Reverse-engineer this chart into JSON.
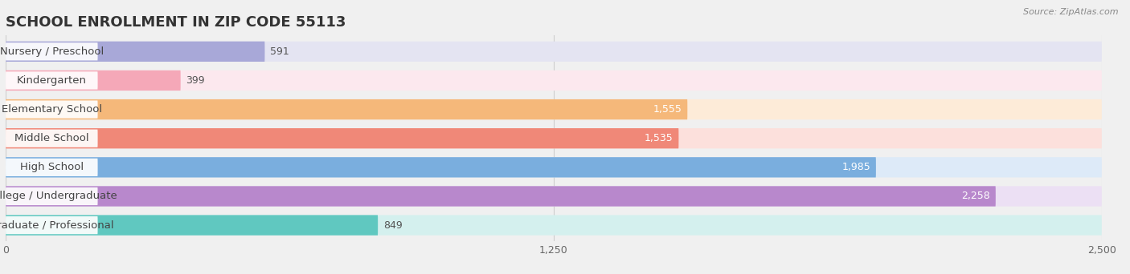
{
  "title": "SCHOOL ENROLLMENT IN ZIP CODE 55113",
  "source": "Source: ZipAtlas.com",
  "categories": [
    "Nursery / Preschool",
    "Kindergarten",
    "Elementary School",
    "Middle School",
    "High School",
    "College / Undergraduate",
    "Graduate / Professional"
  ],
  "values": [
    591,
    399,
    1555,
    1535,
    1985,
    2258,
    849
  ],
  "bar_colors": [
    "#a8a8d8",
    "#f5a8b8",
    "#f5b87a",
    "#f08878",
    "#7aaede",
    "#b888cc",
    "#60c8c0"
  ],
  "bar_bg_colors": [
    "#e4e4f2",
    "#fce8ee",
    "#fdebd8",
    "#fce0dc",
    "#ddeaf8",
    "#ece0f4",
    "#d4f0ee"
  ],
  "xlim": [
    0,
    2500
  ],
  "xticks": [
    0,
    1250,
    2500
  ],
  "background_color": "#f0f0f0",
  "title_fontsize": 13,
  "label_fontsize": 9.5,
  "value_fontsize": 9
}
